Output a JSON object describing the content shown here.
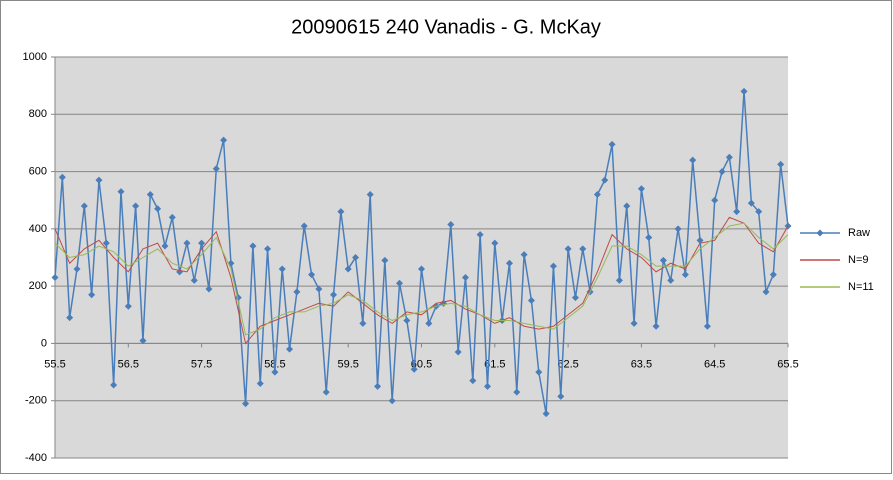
{
  "chart_data": {
    "type": "line",
    "title": "20090615 240 Vanadis - G. McKay",
    "xlim": [
      55.5,
      65.5
    ],
    "xticks": [
      55.5,
      56.5,
      57.5,
      58.5,
      59.5,
      60.5,
      61.5,
      62.5,
      63.5,
      64.5,
      65.5
    ],
    "ylim": [
      -400,
      1000
    ],
    "yticks": [
      -400,
      -200,
      0,
      200,
      400,
      600,
      800,
      1000
    ],
    "grid": true,
    "legend": "right",
    "series": [
      {
        "name": "Raw",
        "color": "#4a7ebb",
        "marker": "diamond",
        "x": [
          55.5,
          55.6,
          55.7,
          55.8,
          55.9,
          56.0,
          56.1,
          56.2,
          56.3,
          56.4,
          56.5,
          56.6,
          56.7,
          56.8,
          56.9,
          57.0,
          57.1,
          57.2,
          57.3,
          57.4,
          57.5,
          57.6,
          57.7,
          57.8,
          57.9,
          58.0,
          58.1,
          58.2,
          58.3,
          58.4,
          58.5,
          58.6,
          58.7,
          58.8,
          58.9,
          59.0,
          59.1,
          59.2,
          59.3,
          59.4,
          59.5,
          59.6,
          59.7,
          59.8,
          59.9,
          60.0,
          60.1,
          60.2,
          60.3,
          60.4,
          60.5,
          60.6,
          60.7,
          60.8,
          60.9,
          61.0,
          61.1,
          61.2,
          61.3,
          61.4,
          61.5,
          61.6,
          61.7,
          61.8,
          61.9,
          62.0,
          62.1,
          62.2,
          62.3,
          62.4,
          62.5,
          62.6,
          62.7,
          62.8,
          62.9,
          63.0,
          63.1,
          63.2,
          63.3,
          63.4,
          63.5,
          63.6,
          63.7,
          63.8,
          63.9,
          64.0,
          64.1,
          64.2,
          64.3,
          64.4,
          64.5,
          64.6,
          64.7,
          64.8,
          64.9,
          65.0,
          65.1,
          65.2,
          65.3,
          65.4,
          65.5
        ],
        "values": [
          230,
          580,
          90,
          260,
          480,
          170,
          570,
          350,
          -145,
          530,
          130,
          480,
          10,
          520,
          470,
          340,
          440,
          250,
          350,
          220,
          350,
          190,
          610,
          710,
          280,
          160,
          -210,
          340,
          -140,
          330,
          -100,
          260,
          -20,
          180,
          410,
          240,
          190,
          -170,
          170,
          460,
          260,
          300,
          70,
          520,
          -150,
          290,
          -200,
          210,
          80,
          -90,
          260,
          70,
          130,
          140,
          415,
          -30,
          230,
          -130,
          380,
          -150,
          350,
          80,
          280,
          -170,
          310,
          150,
          -100,
          -245,
          270,
          -185,
          330,
          160,
          330,
          180,
          520,
          570,
          695,
          220,
          480,
          70,
          540,
          370,
          60,
          290,
          220,
          400,
          240,
          640,
          360,
          60,
          500,
          600,
          650,
          460,
          880,
          490,
          460,
          180,
          240,
          625,
          410
        ]
      },
      {
        "name": "N=9",
        "color": "#be4b48",
        "x": [
          55.5,
          55.7,
          55.9,
          56.1,
          56.3,
          56.5,
          56.7,
          56.9,
          57.1,
          57.3,
          57.5,
          57.7,
          57.9,
          58.1,
          58.3,
          58.5,
          58.7,
          58.9,
          59.1,
          59.3,
          59.5,
          59.7,
          59.9,
          60.1,
          60.3,
          60.5,
          60.7,
          60.9,
          61.1,
          61.3,
          61.5,
          61.7,
          61.9,
          62.1,
          62.3,
          62.5,
          62.7,
          62.9,
          63.1,
          63.3,
          63.5,
          63.7,
          63.9,
          64.1,
          64.3,
          64.5,
          64.7,
          64.9,
          65.1,
          65.3,
          65.5
        ],
        "values": [
          400,
          280,
          330,
          360,
          300,
          250,
          330,
          350,
          260,
          250,
          330,
          390,
          230,
          0,
          60,
          80,
          100,
          120,
          140,
          130,
          180,
          140,
          100,
          70,
          110,
          100,
          140,
          150,
          120,
          100,
          70,
          90,
          60,
          50,
          60,
          100,
          140,
          250,
          380,
          330,
          300,
          250,
          280,
          260,
          350,
          360,
          440,
          420,
          350,
          320,
          410
        ]
      },
      {
        "name": "N=11",
        "color": "#98b954",
        "x": [
          55.5,
          55.7,
          55.9,
          56.1,
          56.3,
          56.5,
          56.7,
          56.9,
          57.1,
          57.3,
          57.5,
          57.7,
          57.9,
          58.1,
          58.3,
          58.5,
          58.7,
          58.9,
          59.1,
          59.3,
          59.5,
          59.7,
          59.9,
          60.1,
          60.3,
          60.5,
          60.7,
          60.9,
          61.1,
          61.3,
          61.5,
          61.7,
          61.9,
          62.1,
          62.3,
          62.5,
          62.7,
          62.9,
          63.1,
          63.3,
          63.5,
          63.7,
          63.9,
          64.1,
          64.3,
          64.5,
          64.7,
          64.9,
          65.1,
          65.3,
          65.5
        ],
        "values": [
          350,
          300,
          310,
          340,
          320,
          270,
          300,
          330,
          280,
          260,
          310,
          370,
          260,
          30,
          50,
          90,
          110,
          110,
          130,
          140,
          170,
          150,
          110,
          80,
          100,
          110,
          130,
          140,
          130,
          100,
          80,
          80,
          70,
          60,
          50,
          90,
          130,
          230,
          340,
          340,
          310,
          270,
          270,
          270,
          330,
          370,
          410,
          420,
          370,
          330,
          380
        ]
      }
    ]
  }
}
